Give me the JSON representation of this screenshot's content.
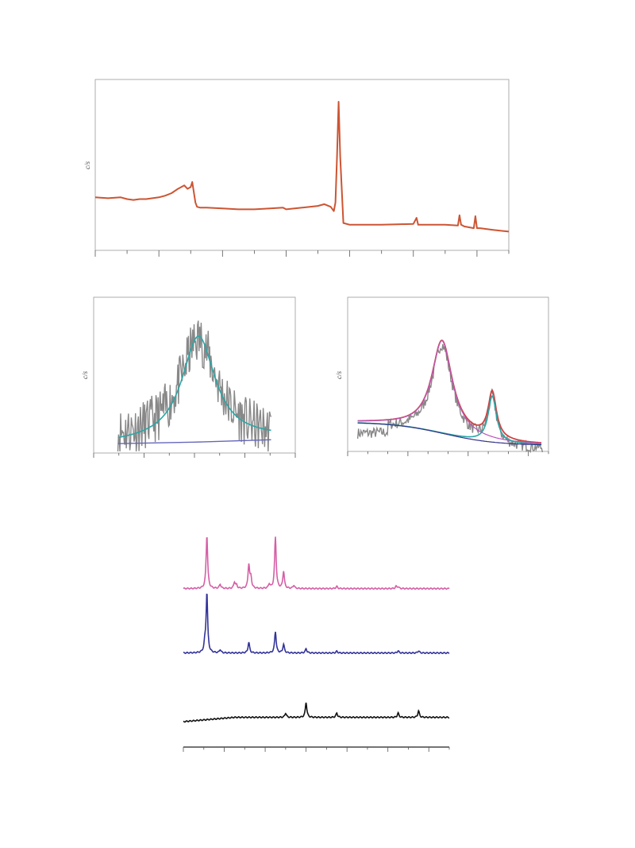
{
  "page": {
    "title": ""
  },
  "chart_data": [
    {
      "id": "survey",
      "type": "line",
      "title": "",
      "xlabel": "",
      "ylabel": "c/s",
      "xlim": [
        0,
        13
      ],
      "ylim": [
        0,
        10
      ],
      "grid": false,
      "series": [
        {
          "color": "#cc5533",
          "x": [
            0,
            0.4,
            0.8,
            1.0,
            1.2,
            1.4,
            1.6,
            1.8,
            2.0,
            2.2,
            2.4,
            2.6,
            2.8,
            2.9,
            3.0,
            3.05,
            3.1,
            3.15,
            3.2,
            3.3,
            3.5,
            4.0,
            4.5,
            5.0,
            5.5,
            5.9,
            6.0,
            6.5,
            7.0,
            7.2,
            7.4,
            7.5,
            7.55,
            7.6,
            7.65,
            7.7,
            7.8,
            8.0,
            8.5,
            9.0,
            9.5,
            10.0,
            10.1,
            10.15,
            10.2,
            10.5,
            11.0,
            11.4,
            11.45,
            11.5,
            11.6,
            11.9,
            11.95,
            12.0,
            12.1,
            12.5,
            13.0
          ],
          "values": [
            3.1,
            3.05,
            3.1,
            3.0,
            2.95,
            3.0,
            3.0,
            3.05,
            3.1,
            3.2,
            3.35,
            3.6,
            3.8,
            3.6,
            3.7,
            4.0,
            3.4,
            2.8,
            2.55,
            2.5,
            2.5,
            2.45,
            2.4,
            2.4,
            2.45,
            2.5,
            2.4,
            2.5,
            2.6,
            2.7,
            2.55,
            2.3,
            2.8,
            5.5,
            8.7,
            5.5,
            1.6,
            1.5,
            1.5,
            1.5,
            1.52,
            1.55,
            1.9,
            1.5,
            1.5,
            1.5,
            1.5,
            1.45,
            2.05,
            1.5,
            1.4,
            1.3,
            2.0,
            1.3,
            1.3,
            1.2,
            1.1
          ]
        }
      ]
    },
    {
      "id": "fit-left",
      "type": "line",
      "title": "",
      "xlabel": "",
      "ylabel": "c/s",
      "xlim": [
        0,
        10
      ],
      "ylim": [
        0,
        10
      ],
      "grid": false,
      "series": [
        {
          "kind": "noisy-data",
          "color": "#888888",
          "center": 5.2,
          "width": 2.2,
          "amp": 6.4,
          "base": 0.9,
          "noise": 1.0,
          "xrange": [
            1.2,
            8.8
          ]
        },
        {
          "kind": "fit",
          "color": "#2aa6a6",
          "center": 5.2,
          "width": 2.0,
          "amp": 6.7,
          "base": 0.6,
          "baseSlope": 0.05,
          "xrange": [
            1.2,
            8.8
          ]
        },
        {
          "kind": "background",
          "color": "#6666bb",
          "x": [
            1.2,
            5.0,
            8.8
          ],
          "values": [
            0.6,
            0.7,
            0.85
          ]
        }
      ]
    },
    {
      "id": "fit-right",
      "type": "line",
      "title": "",
      "xlabel": "",
      "ylabel": "c/s",
      "xlim": [
        0,
        10
      ],
      "ylim": [
        0,
        10
      ],
      "grid": false,
      "series": [
        {
          "kind": "noisy-data",
          "color": "#888888",
          "noise": 0.25
        },
        {
          "kind": "envelope",
          "color": "#cc4444"
        },
        {
          "kind": "component-1",
          "color": "#bb55bb"
        },
        {
          "kind": "component-2",
          "color": "#2aa6a6"
        },
        {
          "kind": "background",
          "color": "#333388"
        }
      ],
      "peaks": [
        {
          "center": 4.7,
          "width": 1.25,
          "amp": 6.0
        },
        {
          "center": 7.2,
          "width": 0.5,
          "amp": 3.0
        }
      ],
      "background": {
        "high": 1.9,
        "low": 0.4,
        "center": 4.8,
        "width": 1.3
      }
    },
    {
      "id": "stacked",
      "type": "line",
      "title": "",
      "xlabel": "",
      "ylabel": "",
      "xlim": [
        0,
        13
      ],
      "ylim": [
        0,
        100
      ],
      "grid": false,
      "series": [
        {
          "color": "#d45fa6",
          "base": 72,
          "peaks": [
            [
              1.15,
              25
            ],
            [
              1.8,
              2
            ],
            [
              2.5,
              3
            ],
            [
              2.6,
              1.5
            ],
            [
              3.2,
              11
            ],
            [
              3.3,
              5
            ],
            [
              4.2,
              2
            ],
            [
              4.5,
              24
            ],
            [
              4.9,
              8
            ],
            [
              5.4,
              1.5
            ],
            [
              7.5,
              1
            ],
            [
              10.4,
              1
            ],
            [
              10.5,
              0.8
            ]
          ]
        },
        {
          "color": "#333399",
          "base": 42,
          "peaks": [
            [
              1.15,
              28
            ],
            [
              1.05,
              4
            ],
            [
              1.8,
              1.5
            ],
            [
              3.2,
              5
            ],
            [
              4.5,
              10
            ],
            [
              4.9,
              4
            ],
            [
              6.0,
              2
            ],
            [
              7.5,
              0.8
            ],
            [
              10.5,
              1
            ],
            [
              11.5,
              1
            ]
          ]
        },
        {
          "color": "#111111",
          "base": 10,
          "ramp": [
            0.0,
            2.5,
            2.0
          ],
          "peaks": [
            [
              5.0,
              2
            ],
            [
              6.0,
              7
            ],
            [
              7.5,
              2
            ],
            [
              10.5,
              2
            ],
            [
              11.5,
              3
            ]
          ]
        }
      ]
    }
  ]
}
